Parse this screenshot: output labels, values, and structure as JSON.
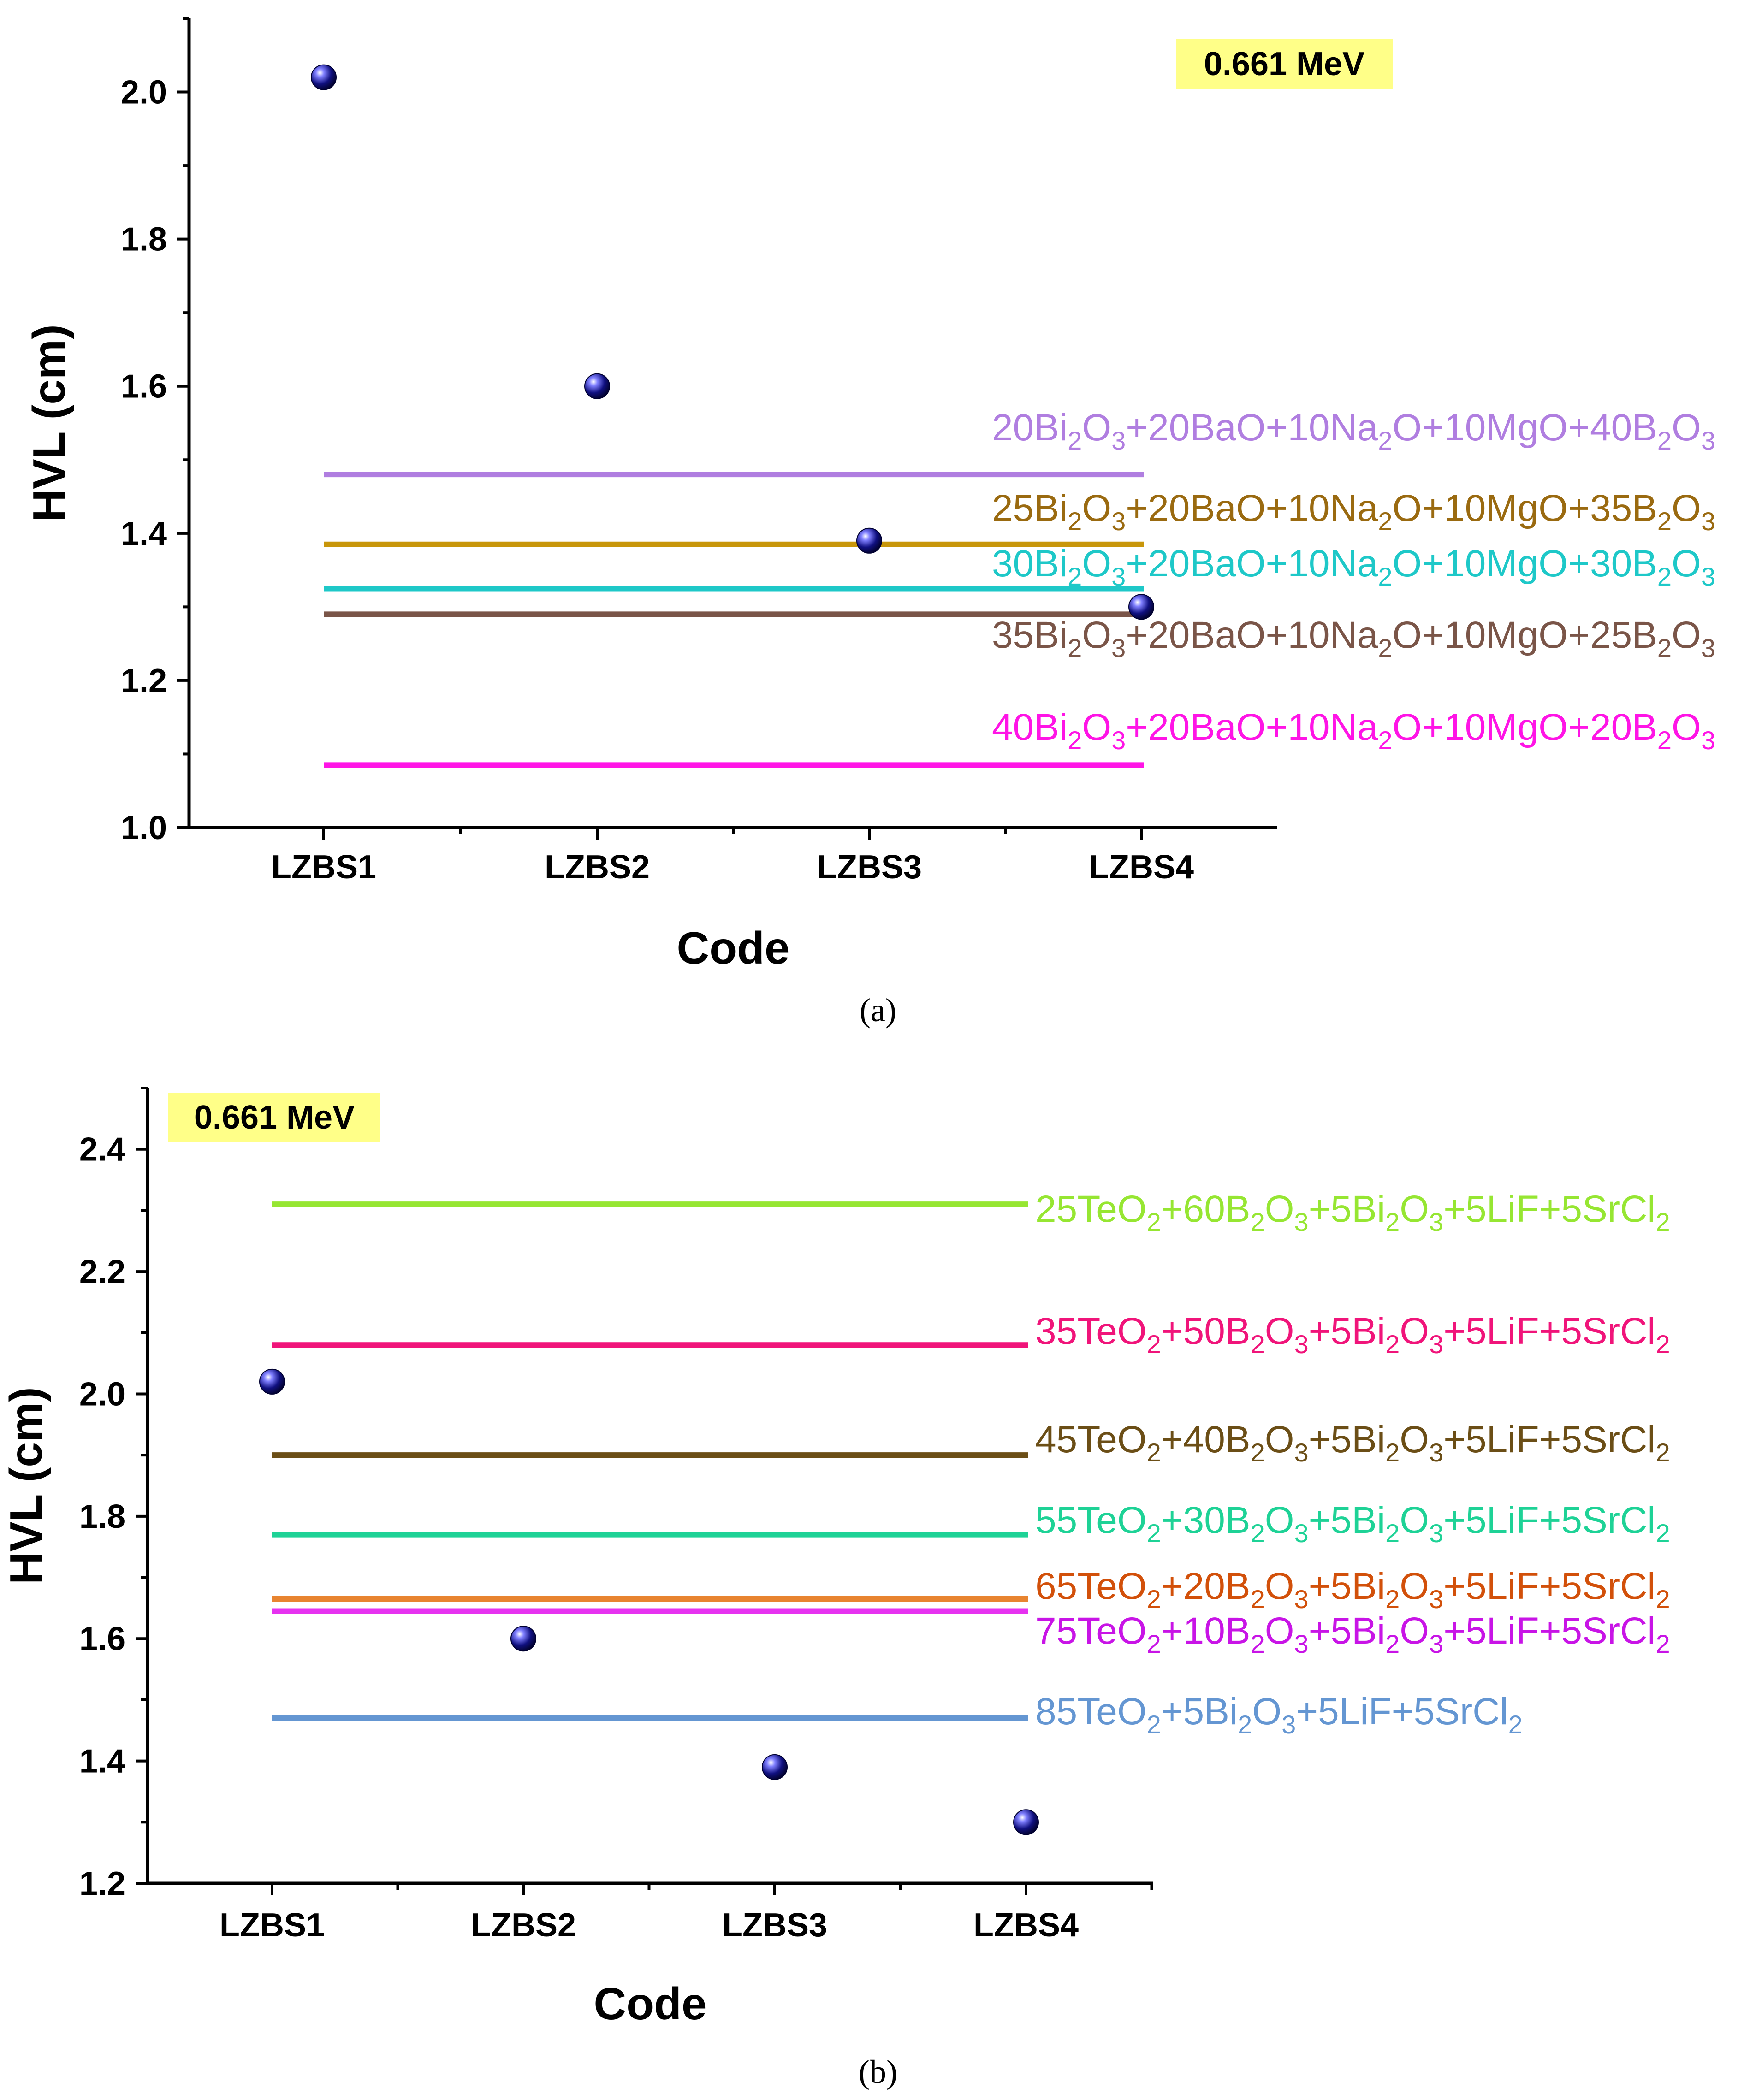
{
  "chart_data": [
    {
      "panel_id": "a",
      "type": "scatter",
      "caption": "(a)",
      "annotation": "0.661 MeV",
      "xlabel": "Code",
      "ylabel": "HVL (cm)",
      "categories": [
        "LZBS1",
        "LZBS2",
        "LZBS3",
        "LZBS4"
      ],
      "ylim": [
        1.0,
        2.1
      ],
      "yticks": [
        "1.0",
        "1.2",
        "1.4",
        "1.6",
        "1.8",
        "2.0"
      ],
      "series": [
        {
          "name": "LZBS",
          "values": [
            2.02,
            1.6,
            1.39,
            1.3
          ]
        }
      ],
      "reference_lines": [
        {
          "value": 1.48,
          "color": "#b07ee0",
          "label_parts": [
            "20Bi",
            "2",
            "O",
            "3",
            "+20BaO+10Na",
            "2",
            "O+10MgO+40B",
            "2",
            "O",
            "3"
          ]
        },
        {
          "value": 1.385,
          "color": "#c8960a",
          "text_color": "#9a6a10",
          "label_parts": [
            "25Bi",
            "2",
            "O",
            "3",
            "+20BaO+10Na",
            "2",
            "O+10MgO+35B",
            "2",
            "O",
            "3"
          ]
        },
        {
          "value": 1.325,
          "color": "#1ec8c8",
          "label_parts": [
            "30Bi",
            "2",
            "O",
            "3",
            "+20BaO+10Na",
            "2",
            "O+10MgO+30B",
            "2",
            "O",
            "3"
          ]
        },
        {
          "value": 1.29,
          "color": "#7a5548",
          "label_parts": [
            "35Bi",
            "2",
            "O",
            "3",
            "+20BaO+10Na",
            "2",
            "O+10MgO+25B",
            "2",
            "O",
            "3"
          ]
        },
        {
          "value": 1.085,
          "color": "#ff14e6",
          "label_parts": [
            "40Bi",
            "2",
            "O",
            "3",
            "+20BaO+10Na",
            "2",
            "O+10MgO+20B",
            "2",
            "O",
            "3"
          ]
        }
      ]
    },
    {
      "panel_id": "b",
      "type": "scatter",
      "caption": "(b)",
      "annotation": "0.661 MeV",
      "xlabel": "Code",
      "ylabel": "HVL (cm)",
      "categories": [
        "LZBS1",
        "LZBS2",
        "LZBS3",
        "LZBS4"
      ],
      "ylim": [
        1.2,
        2.5
      ],
      "yticks": [
        "1.2",
        "1.4",
        "1.6",
        "1.8",
        "2.0",
        "2.2",
        "2.4"
      ],
      "series": [
        {
          "name": "LZBS",
          "values": [
            2.02,
            1.6,
            1.39,
            1.3
          ]
        }
      ],
      "reference_lines": [
        {
          "value": 2.31,
          "color": "#96e632",
          "label_parts": [
            "25TeO",
            "2",
            "+60B",
            "2",
            "O",
            "3",
            "+5Bi",
            "2",
            "O",
            "3",
            "+5LiF+5SrCl",
            "2"
          ]
        },
        {
          "value": 2.08,
          "color": "#f0147a",
          "label_parts": [
            "35TeO",
            "2",
            "+50B",
            "2",
            "O",
            "3",
            "+5Bi",
            "2",
            "O",
            "3",
            "+5LiF+5SrCl",
            "2"
          ]
        },
        {
          "value": 1.9,
          "color": "#6b4e16",
          "label_parts": [
            "45TeO",
            "2",
            "+40B",
            "2",
            "O",
            "3",
            "+5Bi",
            "2",
            "O",
            "3",
            "+5LiF+5SrCl",
            "2"
          ]
        },
        {
          "value": 1.77,
          "color": "#1ed296",
          "label_parts": [
            "55TeO",
            "2",
            "+30B",
            "2",
            "O",
            "3",
            "+5Bi",
            "2",
            "O",
            "3",
            "+5LiF+5SrCl",
            "2"
          ]
        },
        {
          "value": 1.665,
          "color": "#e88430",
          "text_color": "#d2500a",
          "label_parts": [
            "65TeO",
            "2",
            "+20B",
            "2",
            "O",
            "3",
            "+5Bi",
            "2",
            "O",
            "3",
            "+5LiF+5SrCl",
            "2"
          ]
        },
        {
          "value": 1.645,
          "color": "#e632f0",
          "text_color": "#c814e6",
          "label_parts": [
            "75TeO",
            "2",
            "+10B",
            "2",
            "O",
            "3",
            "+5Bi",
            "2",
            "O",
            "3",
            "+5LiF+5SrCl",
            "2"
          ]
        },
        {
          "value": 1.47,
          "color": "#6496d2",
          "label_parts": [
            "85TeO",
            "2",
            "+5Bi",
            "2",
            "O",
            "3",
            "+5LiF+5SrCl",
            "2"
          ]
        }
      ]
    }
  ]
}
